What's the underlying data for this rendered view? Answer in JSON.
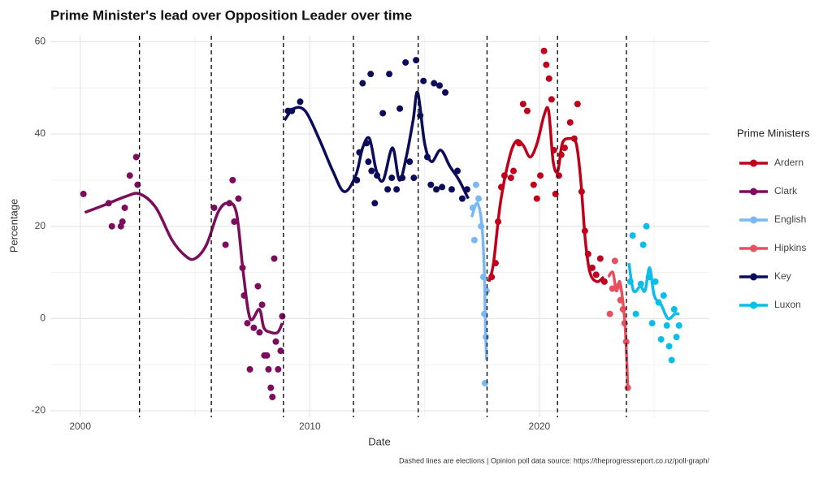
{
  "chart_data": {
    "type": "scatter",
    "title": "Prime Minister's lead over Opposition Leader over time",
    "x_label": "Date",
    "y_label": "Percentage",
    "caption": "Dashed lines are elections | Opinion poll data source: https://theprogressreport.co.nz/poll-graph/",
    "legend_title": "Prime Ministers",
    "legend_position": "right",
    "grid": true,
    "xlim": [
      1998.7,
      2027.4
    ],
    "ylim": [
      -21.4,
      61.3
    ],
    "xticks": [
      2000,
      2010,
      2020
    ],
    "yticks": [
      -20,
      0,
      20,
      40,
      60
    ],
    "x_minor_ticks": [
      2005,
      2015,
      2025
    ],
    "y_minor_ticks": [
      -10,
      10,
      30,
      50
    ],
    "elections": [
      2002.58,
      2005.71,
      2008.85,
      2011.9,
      2014.72,
      2017.72,
      2020.79,
      2023.79
    ],
    "series": [
      {
        "name": "Ardern",
        "color": "#c0001a",
        "x": [
          2017.92,
          2018.09,
          2018.2,
          2018.34,
          2018.48,
          2018.76,
          2018.87,
          2019.12,
          2019.29,
          2019.47,
          2019.75,
          2019.89,
          2020.04,
          2020.2,
          2020.3,
          2020.42,
          2020.53,
          2020.63,
          2020.7,
          2020.85,
          2020.95,
          2021.1,
          2021.34,
          2021.52,
          2021.66,
          2021.84,
          2021.98,
          2022.12,
          2022.3,
          2022.47,
          2022.65,
          2022.83
        ],
        "values": [
          9,
          12,
          21,
          28.5,
          31,
          30.5,
          32,
          38,
          46.5,
          45,
          29,
          26,
          31,
          58,
          55,
          52,
          47.5,
          36.5,
          27,
          31,
          35.5,
          37,
          42.5,
          39,
          46.5,
          27.5,
          19,
          14,
          11,
          9.5,
          13,
          8
        ],
        "trend_x": [
          2017.8,
          2018,
          2018.3,
          2018.7,
          2019,
          2019.3,
          2019.6,
          2019.9,
          2020.2,
          2020.4,
          2020.6,
          2020.8,
          2021,
          2021.3,
          2021.6,
          2021.8,
          2022,
          2022.2,
          2022.5,
          2022.8
        ],
        "trend": [
          8,
          12,
          25,
          35,
          38.5,
          37.5,
          35,
          38,
          44,
          45,
          34,
          32,
          38,
          39,
          38,
          30,
          17,
          10,
          8,
          9
        ]
      },
      {
        "name": "Clark",
        "color": "#7b0d5c",
        "x": [
          2000.14,
          2001.24,
          2001.38,
          2001.77,
          2001.84,
          2001.94,
          2002.16,
          2002.44,
          2002.5,
          2005.83,
          2006.33,
          2006.5,
          2006.64,
          2006.71,
          2006.89,
          2007.07,
          2007.14,
          2007.28,
          2007.39,
          2007.56,
          2007.74,
          2007.81,
          2007.92,
          2008.02,
          2008.13,
          2008.2,
          2008.3,
          2008.37,
          2008.45,
          2008.52,
          2008.62,
          2008.73,
          2008.8
        ],
        "values": [
          27,
          25,
          20,
          20,
          21,
          24,
          31,
          35,
          29,
          24,
          16,
          25,
          30,
          21,
          26,
          11,
          5,
          -1,
          -11,
          -2,
          7,
          -3,
          3,
          -8,
          -8,
          -11,
          -15,
          -17,
          13,
          -5,
          -11,
          -7,
          0.5
        ],
        "trend_x": [
          2000.2,
          2001,
          2002,
          2002.6,
          2003.3,
          2004,
          2004.6,
          2005,
          2005.5,
          2006,
          2006.4,
          2006.8,
          2007.1,
          2007.4,
          2007.8,
          2008,
          2008.3,
          2008.6,
          2008.8
        ],
        "trend": [
          23,
          24.5,
          26.5,
          27,
          24,
          17,
          13.5,
          13,
          16,
          23,
          25,
          23,
          10,
          0,
          2,
          -2,
          -3,
          -3,
          -1
        ]
      },
      {
        "name": "English",
        "color": "#7ab8f5",
        "x": [
          2017.1,
          2017.17,
          2017.24,
          2017.35,
          2017.46,
          2017.56,
          2017.6,
          2017.63,
          2017.67,
          2017.7
        ],
        "values": [
          24,
          17,
          29,
          26,
          20,
          9,
          1,
          -14,
          -4,
          6
        ],
        "trend_x": [
          2017.05,
          2017.3,
          2017.5,
          2017.6,
          2017.65,
          2017.7
        ],
        "trend": [
          22,
          25,
          20,
          10,
          -2,
          -9
        ]
      },
      {
        "name": "Hipkins",
        "color": "#e8505f",
        "x": [
          2023.07,
          2023.18,
          2023.29,
          2023.43,
          2023.53,
          2023.64,
          2023.71,
          2023.78,
          2023.85
        ],
        "values": [
          1,
          6.5,
          12.5,
          7,
          4,
          2,
          -1,
          -5,
          -15
        ],
        "trend_x": [
          2023,
          2023.2,
          2023.35,
          2023.5,
          2023.65,
          2023.75,
          2023.85
        ],
        "trend": [
          9,
          10,
          6,
          8,
          3,
          -3,
          -15
        ]
      },
      {
        "name": "Key",
        "color": "#0b0b5a",
        "x": [
          2009.05,
          2009.22,
          2009.58,
          2012.05,
          2012.16,
          2012.3,
          2012.47,
          2012.55,
          2012.65,
          2012.69,
          2012.83,
          2012.93,
          2013.18,
          2013.39,
          2013.46,
          2013.57,
          2013.78,
          2013.92,
          2014.03,
          2014.17,
          2014.35,
          2014.53,
          2014.63,
          2014.81,
          2014.95,
          2015.12,
          2015.27,
          2015.41,
          2015.51,
          2015.65,
          2015.76,
          2015.9,
          2016.18,
          2016.43,
          2016.64,
          2016.85
        ],
        "values": [
          45,
          45,
          47,
          30,
          36,
          51,
          38,
          34,
          53,
          32,
          25,
          31,
          44.5,
          28,
          53,
          30.5,
          28,
          45.5,
          30.5,
          55.5,
          34,
          30.5,
          56,
          44,
          51.5,
          35,
          29,
          51,
          28,
          50.5,
          28.5,
          49,
          28,
          32,
          26,
          28
        ],
        "trend_x": [
          2008.9,
          2009.3,
          2009.8,
          2010.4,
          2011,
          2011.5,
          2012,
          2012.3,
          2012.6,
          2012.9,
          2013.2,
          2013.6,
          2013.9,
          2014.2,
          2014.5,
          2014.7,
          2015,
          2015.3,
          2015.7,
          2016.1,
          2016.5,
          2016.9
        ],
        "trend": [
          43,
          45.5,
          45,
          39,
          32,
          27.5,
          31,
          37,
          39,
          32,
          30,
          37,
          30,
          35,
          43,
          49,
          38,
          34,
          36.5,
          33,
          30,
          26
        ]
      },
      {
        "name": "Luxon",
        "color": "#0bbde8",
        "x": [
          2023.96,
          2024.06,
          2024.2,
          2024.42,
          2024.52,
          2024.66,
          2024.77,
          2024.91,
          2025.05,
          2025.19,
          2025.3,
          2025.41,
          2025.55,
          2025.65,
          2025.76,
          2025.87,
          2025.97,
          2026.08
        ],
        "values": [
          8,
          18,
          1,
          7.5,
          16,
          20,
          9,
          -1,
          8,
          3.5,
          -4.5,
          5,
          -1.5,
          -6,
          -9,
          2,
          -4,
          -1.5
        ],
        "trend_x": [
          2023.9,
          2024.1,
          2024.4,
          2024.6,
          2024.8,
          2025,
          2025.3,
          2025.6,
          2025.9,
          2026.1
        ],
        "trend": [
          12,
          6,
          7,
          6,
          11,
          5,
          3,
          0,
          1,
          1
        ]
      }
    ]
  }
}
